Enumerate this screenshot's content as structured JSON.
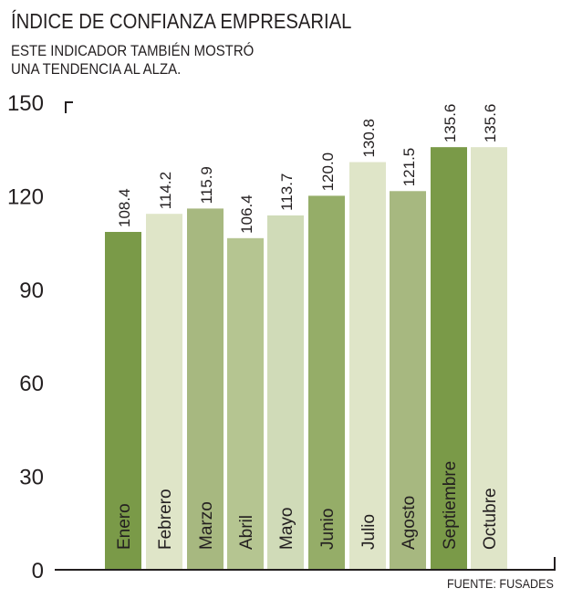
{
  "chart_data": {
    "type": "bar",
    "title": "ÍNDICE DE CONFIANZA EMPRESARIAL",
    "subtitle": [
      "ESTE INDICADOR TAMBIÉN MOSTRÓ",
      "UNA TENDENCIA AL ALZA."
    ],
    "categories": [
      "Enero",
      "Febrero",
      "Marzo",
      "Abril",
      "Mayo",
      "Junio",
      "Julio",
      "Agosto",
      "Septiembre",
      "Octubre"
    ],
    "values": [
      108.4,
      114.2,
      115.9,
      106.4,
      113.7,
      120.0,
      130.8,
      121.5,
      135.6,
      135.6
    ],
    "value_labels": [
      "108.4",
      "114.2",
      "115.9",
      "106.4",
      "113.7",
      "120.0",
      "130.8",
      "121.5",
      "135.6",
      "135.6"
    ],
    "colors": [
      "#7a9a48",
      "#dfe5c8",
      "#a7b880",
      "#b5c591",
      "#d0dbb8",
      "#95ad68",
      "#dfe5c8",
      "#a7b880",
      "#7a9a48",
      "#dfe5c8"
    ],
    "yticks": [
      0,
      30,
      60,
      90,
      120,
      150
    ],
    "ylim": [
      0,
      150
    ],
    "xlabel": "",
    "ylabel": "",
    "grid": false,
    "source": "FUENTE: FUSADES"
  }
}
